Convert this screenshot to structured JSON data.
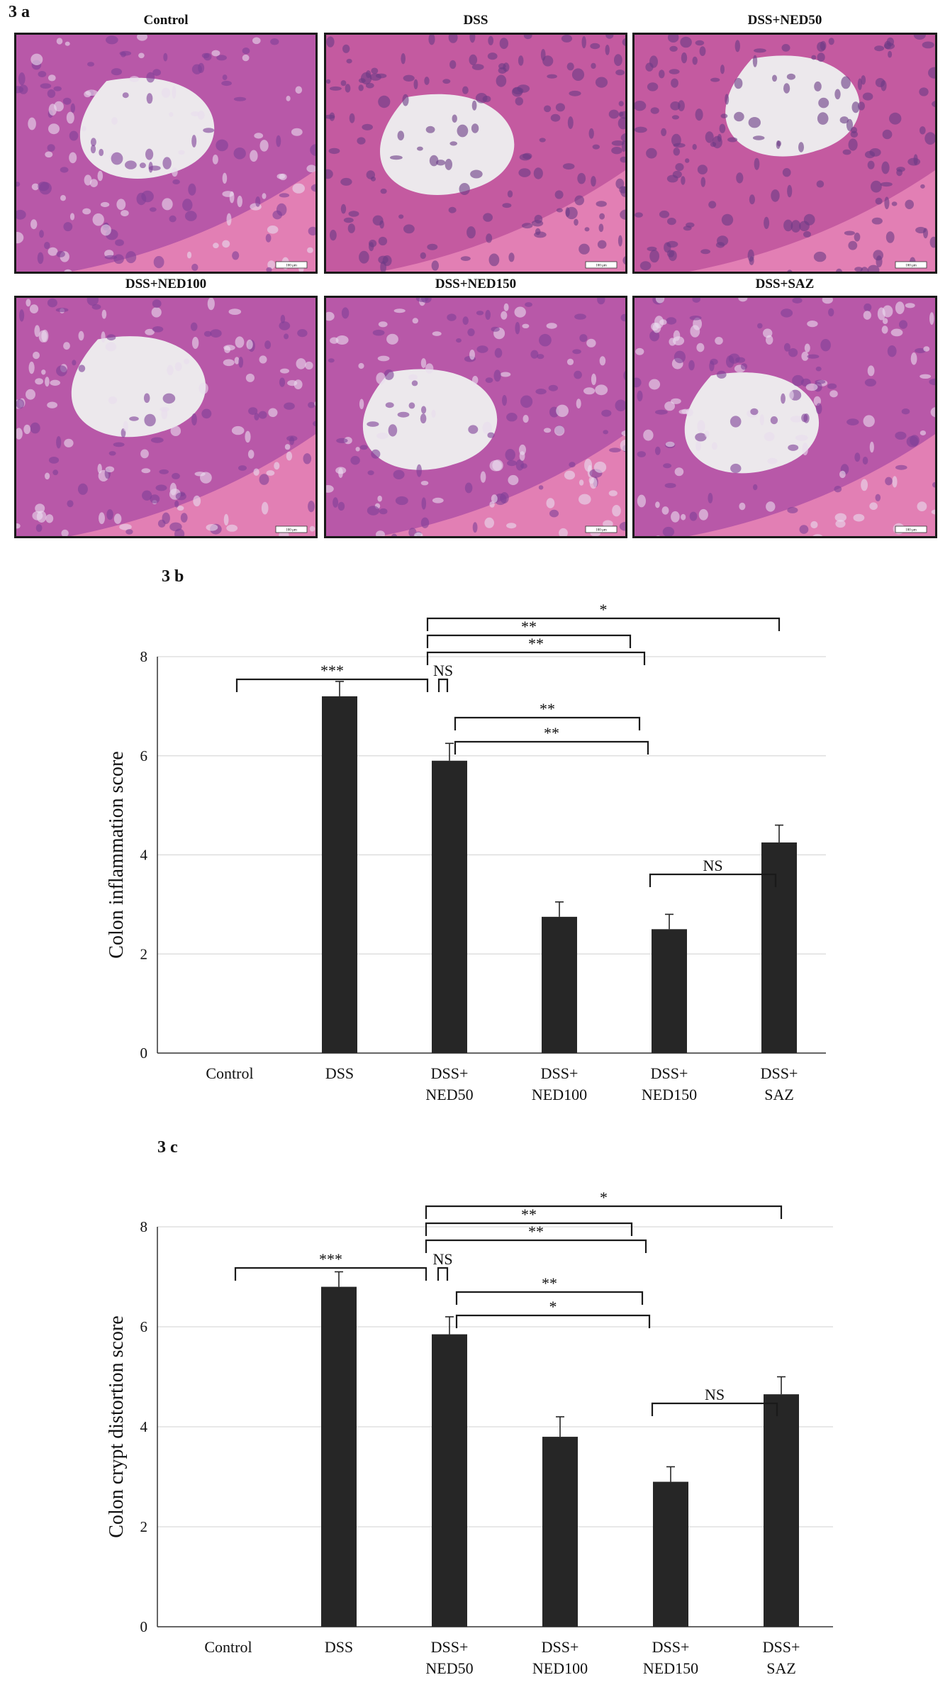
{
  "figure_a": {
    "label": "3 a",
    "panels": [
      {
        "title": "Control",
        "style": "normal"
      },
      {
        "title": "DSS",
        "style": "inflamed"
      },
      {
        "title": "DSS+NED50",
        "style": "inflamed"
      },
      {
        "title": "DSS+NED100",
        "style": "normal"
      },
      {
        "title": "DSS+NED150",
        "style": "normal"
      },
      {
        "title": "DSS+SAZ",
        "style": "normal"
      }
    ],
    "scale_bar_text": "100 µm"
  },
  "chart_data": [
    {
      "panel_label": "3 b",
      "type": "bar",
      "ylabel": "Colon inflammation score",
      "ylim": [
        0,
        8
      ],
      "yticks": [
        "0",
        "2",
        "4",
        "6",
        "8"
      ],
      "categories": [
        [
          "Control"
        ],
        [
          "DSS"
        ],
        [
          "DSS+",
          "NED50"
        ],
        [
          "DSS+",
          "NED100"
        ],
        [
          "DSS+",
          "NED150"
        ],
        [
          "DSS+",
          "SAZ"
        ]
      ],
      "values": [
        0,
        7.2,
        5.9,
        2.75,
        2.5,
        4.25
      ],
      "errors": [
        0,
        0.3,
        0.35,
        0.3,
        0.3,
        0.35
      ],
      "grid": true,
      "comparisons": [
        {
          "from": 1,
          "to": 5,
          "label": "*"
        },
        {
          "from": 1,
          "to": 4,
          "label": "**"
        },
        {
          "from": 1,
          "to": 3,
          "label": "**"
        },
        {
          "from": 0,
          "to": 1,
          "label": "***"
        },
        {
          "from": 1,
          "to": 2,
          "label": "NS"
        },
        {
          "from": 2,
          "to": 4,
          "label": "**"
        },
        {
          "from": 2,
          "to": 3,
          "label": "**"
        },
        {
          "from": 3,
          "to": 4,
          "label": "NS"
        }
      ]
    },
    {
      "panel_label": "3 c",
      "type": "bar",
      "ylabel": "Colon crypt distortion score",
      "ylim": [
        0,
        8
      ],
      "yticks": [
        "0",
        "2",
        "4",
        "6",
        "8"
      ],
      "categories": [
        [
          "Control"
        ],
        [
          "DSS"
        ],
        [
          "DSS+",
          "NED50"
        ],
        [
          "DSS+",
          "NED100"
        ],
        [
          "DSS+",
          "NED150"
        ],
        [
          "DSS+",
          "SAZ"
        ]
      ],
      "values": [
        0,
        6.8,
        5.85,
        3.8,
        2.9,
        4.65
      ],
      "errors": [
        0,
        0.3,
        0.35,
        0.4,
        0.3,
        0.35
      ],
      "grid": true,
      "comparisons": [
        {
          "from": 1,
          "to": 5,
          "label": "*"
        },
        {
          "from": 1,
          "to": 4,
          "label": "**"
        },
        {
          "from": 1,
          "to": 3,
          "label": "**"
        },
        {
          "from": 0,
          "to": 1,
          "label": "***"
        },
        {
          "from": 1,
          "to": 2,
          "label": "NS"
        },
        {
          "from": 2,
          "to": 4,
          "label": "**"
        },
        {
          "from": 2,
          "to": 3,
          "label": "*"
        },
        {
          "from": 3,
          "to": 4,
          "label": "NS"
        }
      ]
    }
  ]
}
